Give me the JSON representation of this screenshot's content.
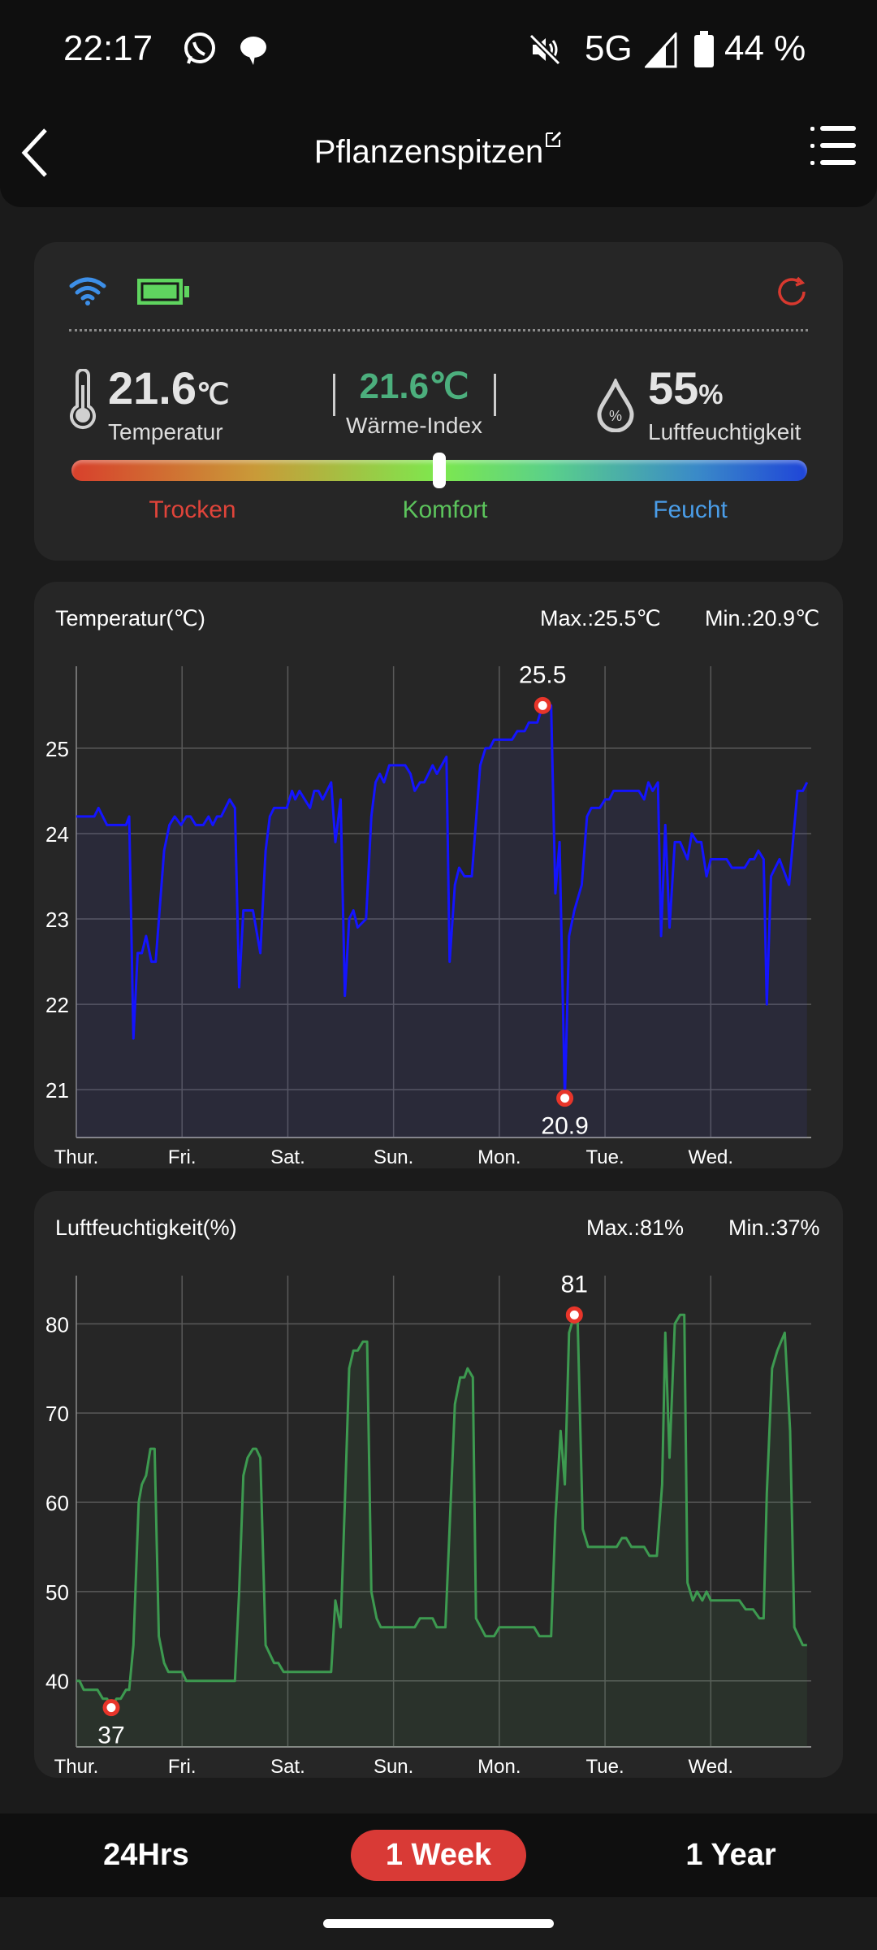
{
  "status_bar": {
    "time": "22:17",
    "network": "5G",
    "battery": "44 %"
  },
  "header": {
    "title": "Pflanzenspitzen"
  },
  "summary": {
    "temperature": {
      "value": "21.6",
      "unit": "℃",
      "label": "Temperatur"
    },
    "heat_index": {
      "value": "21.6℃",
      "label": "Wärme-Index"
    },
    "humidity": {
      "value": "55",
      "unit": "%",
      "label": "Luftfeuchtigkeit"
    },
    "comfort_position": 0.5,
    "zones": {
      "dry": "Trocken",
      "comfort": "Komfort",
      "wet": "Feucht"
    },
    "colors": {
      "dry": "#e0443a",
      "comfort": "#5cc45c",
      "wet": "#4a9de8",
      "heat_index": "#4caf7d"
    }
  },
  "ranges": {
    "day": "24Hrs",
    "week": "1 Week",
    "year": "1 Year",
    "active": "week",
    "accent": "#d93a36"
  },
  "chart_data": [
    {
      "type": "line",
      "title": "Temperatur(℃)",
      "max_label": "Max.:25.5℃",
      "min_label": "Min.:20.9℃",
      "xlabel": "",
      "ylabel": "",
      "categories": [
        "Thur.",
        "Fri.",
        "Sat.",
        "Sun.",
        "Mon.",
        "Tue.",
        "Wed."
      ],
      "xlim": [
        0,
        6.95
      ],
      "ylim": [
        20.44,
        25.96
      ],
      "yticks": [
        21,
        22,
        23,
        24,
        25
      ],
      "color": "#1414ff",
      "fill": "rgba(70,70,160,0.16)",
      "max_point": {
        "x": 4.41,
        "y": 25.5,
        "label": "25.5"
      },
      "min_point": {
        "x": 4.62,
        "y": 20.9,
        "label": "20.9"
      },
      "points": [
        [
          0,
          24.2
        ],
        [
          0.17,
          24.2
        ],
        [
          0.21,
          24.3
        ],
        [
          0.29,
          24.1
        ],
        [
          0.47,
          24.1
        ],
        [
          0.5,
          24.2
        ],
        [
          0.54,
          21.6
        ],
        [
          0.58,
          22.6
        ],
        [
          0.62,
          22.6
        ],
        [
          0.66,
          22.8
        ],
        [
          0.71,
          22.5
        ],
        [
          0.75,
          22.5
        ],
        [
          0.83,
          23.8
        ],
        [
          0.88,
          24.1
        ],
        [
          0.93,
          24.2
        ],
        [
          0.99,
          24.1
        ],
        [
          1.04,
          24.2
        ],
        [
          1.08,
          24.2
        ],
        [
          1.13,
          24.1
        ],
        [
          1.2,
          24.1
        ],
        [
          1.25,
          24.2
        ],
        [
          1.29,
          24.1
        ],
        [
          1.33,
          24.2
        ],
        [
          1.37,
          24.2
        ],
        [
          1.45,
          24.4
        ],
        [
          1.5,
          24.3
        ],
        [
          1.54,
          22.2
        ],
        [
          1.58,
          23.1
        ],
        [
          1.67,
          23.1
        ],
        [
          1.74,
          22.6
        ],
        [
          1.79,
          23.8
        ],
        [
          1.83,
          24.2
        ],
        [
          1.87,
          24.3
        ],
        [
          1.99,
          24.3
        ],
        [
          2.04,
          24.5
        ],
        [
          2.07,
          24.4
        ],
        [
          2.11,
          24.5
        ],
        [
          2.21,
          24.3
        ],
        [
          2.25,
          24.5
        ],
        [
          2.29,
          24.5
        ],
        [
          2.33,
          24.4
        ],
        [
          2.41,
          24.6
        ],
        [
          2.45,
          23.9
        ],
        [
          2.5,
          24.4
        ],
        [
          2.54,
          22.1
        ],
        [
          2.58,
          23.0
        ],
        [
          2.62,
          23.1
        ],
        [
          2.66,
          22.9
        ],
        [
          2.74,
          23.0
        ],
        [
          2.79,
          24.2
        ],
        [
          2.83,
          24.6
        ],
        [
          2.87,
          24.7
        ],
        [
          2.91,
          24.6
        ],
        [
          2.96,
          24.8
        ],
        [
          3.11,
          24.8
        ],
        [
          3.16,
          24.7
        ],
        [
          3.2,
          24.5
        ],
        [
          3.25,
          24.6
        ],
        [
          3.29,
          24.6
        ],
        [
          3.37,
          24.8
        ],
        [
          3.41,
          24.7
        ],
        [
          3.5,
          24.9
        ],
        [
          3.53,
          22.5
        ],
        [
          3.58,
          23.4
        ],
        [
          3.62,
          23.6
        ],
        [
          3.67,
          23.5
        ],
        [
          3.74,
          23.5
        ],
        [
          3.82,
          24.8
        ],
        [
          3.87,
          25.0
        ],
        [
          3.91,
          25.0
        ],
        [
          3.95,
          25.1
        ],
        [
          4.12,
          25.1
        ],
        [
          4.17,
          25.2
        ],
        [
          4.24,
          25.2
        ],
        [
          4.28,
          25.3
        ],
        [
          4.36,
          25.3
        ],
        [
          4.41,
          25.5
        ],
        [
          4.49,
          25.5
        ],
        [
          4.53,
          23.3
        ],
        [
          4.57,
          23.9
        ],
        [
          4.62,
          20.9
        ],
        [
          4.66,
          22.8
        ],
        [
          4.71,
          23.1
        ],
        [
          4.78,
          23.4
        ],
        [
          4.83,
          24.2
        ],
        [
          4.87,
          24.3
        ],
        [
          4.95,
          24.3
        ],
        [
          5.0,
          24.4
        ],
        [
          5.04,
          24.4
        ],
        [
          5.08,
          24.5
        ],
        [
          5.32,
          24.5
        ],
        [
          5.37,
          24.4
        ],
        [
          5.41,
          24.6
        ],
        [
          5.45,
          24.5
        ],
        [
          5.5,
          24.6
        ],
        [
          5.53,
          22.8
        ],
        [
          5.57,
          24.1
        ],
        [
          5.61,
          22.9
        ],
        [
          5.66,
          23.9
        ],
        [
          5.71,
          23.9
        ],
        [
          5.78,
          23.7
        ],
        [
          5.82,
          24.0
        ],
        [
          5.87,
          23.9
        ],
        [
          5.91,
          23.9
        ],
        [
          5.96,
          23.5
        ],
        [
          6.0,
          23.7
        ],
        [
          6.15,
          23.7
        ],
        [
          6.2,
          23.6
        ],
        [
          6.32,
          23.6
        ],
        [
          6.37,
          23.7
        ],
        [
          6.41,
          23.7
        ],
        [
          6.45,
          23.8
        ],
        [
          6.5,
          23.7
        ],
        [
          6.53,
          22.0
        ],
        [
          6.57,
          23.5
        ],
        [
          6.65,
          23.7
        ],
        [
          6.74,
          23.4
        ],
        [
          6.82,
          24.5
        ],
        [
          6.87,
          24.5
        ],
        [
          6.91,
          24.6
        ]
      ]
    },
    {
      "type": "line",
      "title": "Luftfeuchtigkeit(%)",
      "max_label": "Max.:81%",
      "min_label": "Min.:37%",
      "xlabel": "",
      "ylabel": "",
      "categories": [
        "Thur.",
        "Fri.",
        "Sat.",
        "Sun.",
        "Mon.",
        "Tue.",
        "Wed."
      ],
      "xlim": [
        0,
        6.95
      ],
      "ylim": [
        32.6,
        85.4
      ],
      "yticks": [
        40,
        50,
        60,
        70,
        80
      ],
      "color": "#3d9a50",
      "fill": "rgba(70,140,80,0.12)",
      "max_point": {
        "x": 4.71,
        "y": 81,
        "label": "81"
      },
      "min_point": {
        "x": 0.33,
        "y": 37,
        "label": "37"
      },
      "points": [
        [
          0,
          40
        ],
        [
          0.03,
          40
        ],
        [
          0.07,
          39
        ],
        [
          0.2,
          39
        ],
        [
          0.25,
          38
        ],
        [
          0.29,
          38
        ],
        [
          0.33,
          37
        ],
        [
          0.38,
          38
        ],
        [
          0.42,
          38
        ],
        [
          0.47,
          39
        ],
        [
          0.5,
          39
        ],
        [
          0.54,
          44
        ],
        [
          0.59,
          60
        ],
        [
          0.62,
          62
        ],
        [
          0.66,
          63
        ],
        [
          0.7,
          66
        ],
        [
          0.74,
          66
        ],
        [
          0.78,
          45
        ],
        [
          0.83,
          42
        ],
        [
          0.87,
          41
        ],
        [
          1.0,
          41
        ],
        [
          1.04,
          40
        ],
        [
          1.5,
          40
        ],
        [
          1.54,
          50
        ],
        [
          1.58,
          63
        ],
        [
          1.62,
          65
        ],
        [
          1.67,
          66
        ],
        [
          1.7,
          66
        ],
        [
          1.74,
          65
        ],
        [
          1.79,
          44
        ],
        [
          1.83,
          43
        ],
        [
          1.87,
          42
        ],
        [
          1.91,
          42
        ],
        [
          1.96,
          41
        ],
        [
          2.41,
          41
        ],
        [
          2.45,
          49
        ],
        [
          2.5,
          46
        ],
        [
          2.54,
          60
        ],
        [
          2.58,
          75
        ],
        [
          2.62,
          77
        ],
        [
          2.66,
          77
        ],
        [
          2.71,
          78
        ],
        [
          2.75,
          78
        ],
        [
          2.79,
          50
        ],
        [
          2.84,
          47
        ],
        [
          2.88,
          46
        ],
        [
          3.2,
          46
        ],
        [
          3.25,
          47
        ],
        [
          3.37,
          47
        ],
        [
          3.41,
          46
        ],
        [
          3.49,
          46
        ],
        [
          3.54,
          60
        ],
        [
          3.58,
          71
        ],
        [
          3.63,
          74
        ],
        [
          3.67,
          74
        ],
        [
          3.7,
          75
        ],
        [
          3.75,
          74
        ],
        [
          3.78,
          47
        ],
        [
          3.87,
          45
        ],
        [
          3.95,
          45
        ],
        [
          4.0,
          46
        ],
        [
          4.33,
          46
        ],
        [
          4.38,
          45
        ],
        [
          4.49,
          45
        ],
        [
          4.53,
          58
        ],
        [
          4.58,
          68
        ],
        [
          4.62,
          62
        ],
        [
          4.66,
          79
        ],
        [
          4.71,
          81
        ],
        [
          4.74,
          81
        ],
        [
          4.79,
          57
        ],
        [
          4.84,
          55
        ],
        [
          5.11,
          55
        ],
        [
          5.16,
          56
        ],
        [
          5.2,
          56
        ],
        [
          5.25,
          55
        ],
        [
          5.37,
          55
        ],
        [
          5.42,
          54
        ],
        [
          5.49,
          54
        ],
        [
          5.54,
          62
        ],
        [
          5.57,
          79
        ],
        [
          5.61,
          65
        ],
        [
          5.66,
          80
        ],
        [
          5.71,
          81
        ],
        [
          5.75,
          81
        ],
        [
          5.78,
          51
        ],
        [
          5.83,
          49
        ],
        [
          5.87,
          50
        ],
        [
          5.92,
          49
        ],
        [
          5.96,
          50
        ],
        [
          6.0,
          49
        ],
        [
          6.27,
          49
        ],
        [
          6.33,
          48
        ],
        [
          6.4,
          48
        ],
        [
          6.46,
          47
        ],
        [
          6.5,
          47
        ],
        [
          6.53,
          61
        ],
        [
          6.58,
          75
        ],
        [
          6.63,
          77
        ],
        [
          6.7,
          79
        ],
        [
          6.75,
          68
        ],
        [
          6.79,
          46
        ],
        [
          6.87,
          44
        ],
        [
          6.91,
          44
        ]
      ]
    }
  ]
}
